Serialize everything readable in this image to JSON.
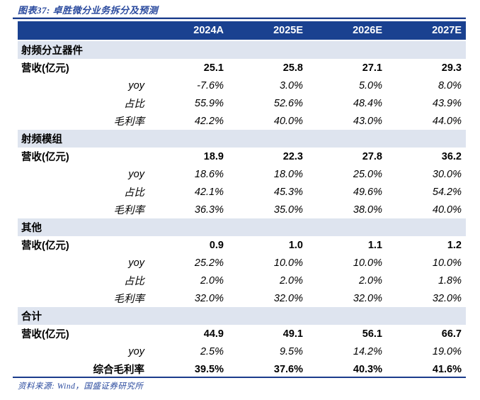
{
  "figure": {
    "title": "图表37: 卓胜微分业务拆分及预测",
    "source": "资料来源: Wind，国盛证券研究所"
  },
  "colors": {
    "header_bg": "#1A4190",
    "header_text": "#FFFFFF",
    "section_bg": "#DEE4EF",
    "accent_blue": "#2A4A9E",
    "rule": "#1B3C8C"
  },
  "chart_data": {
    "type": "table",
    "title": "卓胜微分业务拆分及预测",
    "columns": [
      "2024A",
      "2025E",
      "2026E",
      "2027E"
    ],
    "sections": [
      {
        "name": "射频分立器件",
        "rows": [
          {
            "label": "营收(亿元)",
            "values": [
              "25.1",
              "25.8",
              "27.1",
              "29.3"
            ]
          },
          {
            "label": "yoy",
            "values": [
              "-7.6%",
              "3.0%",
              "5.0%",
              "8.0%"
            ]
          },
          {
            "label": "占比",
            "values": [
              "55.9%",
              "52.6%",
              "48.4%",
              "43.9%"
            ]
          },
          {
            "label": "毛利率",
            "values": [
              "42.2%",
              "40.0%",
              "43.0%",
              "44.0%"
            ]
          }
        ]
      },
      {
        "name": "射频模组",
        "rows": [
          {
            "label": "营收(亿元)",
            "values": [
              "18.9",
              "22.3",
              "27.8",
              "36.2"
            ]
          },
          {
            "label": "yoy",
            "values": [
              "18.6%",
              "18.0%",
              "25.0%",
              "30.0%"
            ]
          },
          {
            "label": "占比",
            "values": [
              "42.1%",
              "45.3%",
              "49.6%",
              "54.2%"
            ]
          },
          {
            "label": "毛利率",
            "values": [
              "36.3%",
              "35.0%",
              "38.0%",
              "40.0%"
            ]
          }
        ]
      },
      {
        "name": "其他",
        "rows": [
          {
            "label": "营收(亿元)",
            "values": [
              "0.9",
              "1.0",
              "1.1",
              "1.2"
            ]
          },
          {
            "label": "yoy",
            "values": [
              "25.2%",
              "10.0%",
              "10.0%",
              "10.0%"
            ]
          },
          {
            "label": "占比",
            "values": [
              "2.0%",
              "2.0%",
              "2.0%",
              "1.8%"
            ]
          },
          {
            "label": "毛利率",
            "values": [
              "32.0%",
              "32.0%",
              "32.0%",
              "32.0%"
            ]
          }
        ]
      },
      {
        "name": "合计",
        "rows": [
          {
            "label": "营收(亿元)",
            "values": [
              "44.9",
              "49.1",
              "56.1",
              "66.7"
            ]
          },
          {
            "label": "yoy",
            "values": [
              "2.5%",
              "9.5%",
              "14.2%",
              "19.0%"
            ]
          },
          {
            "label": "综合毛利率",
            "values": [
              "39.5%",
              "37.6%",
              "40.3%",
              "41.6%"
            ]
          }
        ]
      }
    ]
  }
}
